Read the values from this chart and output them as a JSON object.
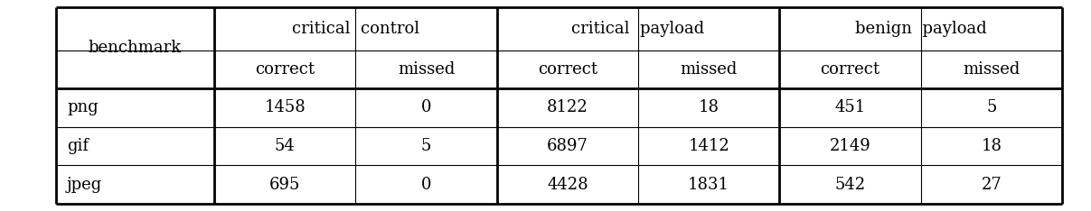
{
  "col_groups": [
    {
      "label": "critical  control",
      "span": 2
    },
    {
      "label": "critical  payload",
      "span": 2
    },
    {
      "label": "benign  payload",
      "span": 2
    }
  ],
  "sub_headers": [
    "correct",
    "missed",
    "correct",
    "missed",
    "correct",
    "missed"
  ],
  "row_header": "benchmark",
  "rows": [
    {
      "name": "png",
      "values": [
        "1458",
        "0",
        "8122",
        "18",
        "451",
        "5"
      ]
    },
    {
      "name": "gif",
      "values": [
        "54",
        "5",
        "6897",
        "1412",
        "2149",
        "18"
      ]
    },
    {
      "name": "jpeg",
      "values": [
        "695",
        "0",
        "4428",
        "1831",
        "542",
        "27"
      ]
    }
  ],
  "background_color": "#ffffff",
  "font_size": 13,
  "lw_outer": 2.0,
  "lw_inner": 0.8,
  "lw_bold": 2.0
}
